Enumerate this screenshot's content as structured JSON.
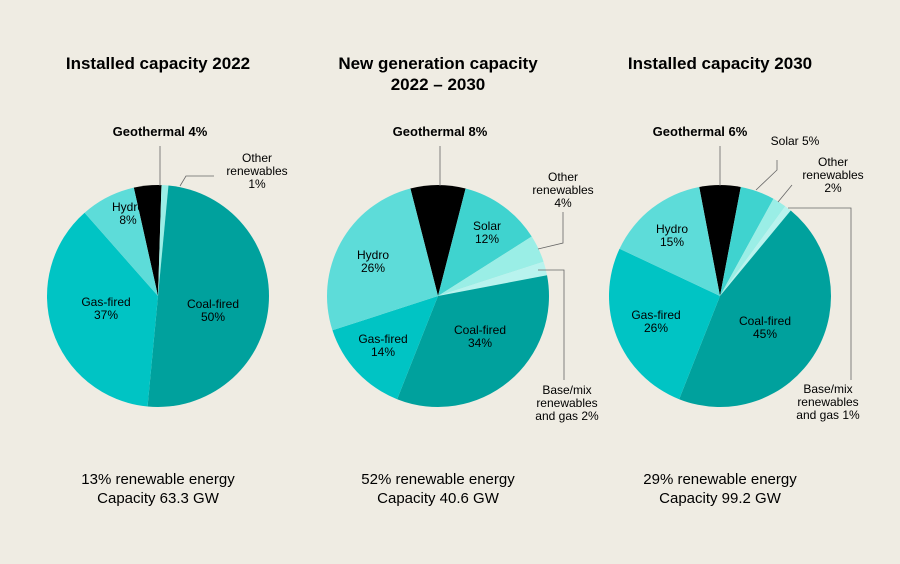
{
  "chart_data": [
    {
      "type": "pie",
      "title": "Installed capacity 2022",
      "footer": [
        "13% renewable energy",
        "Capacity 63.3 GW"
      ],
      "slices": [
        {
          "name": "Geothermal",
          "value": 4,
          "color": "#000000",
          "label": [
            "Geothermal 4%"
          ],
          "bold": true
        },
        {
          "name": "Other renewables",
          "value": 1,
          "color": "#9aeee6",
          "label": [
            "Other",
            "renewables",
            "1%"
          ]
        },
        {
          "name": "Coal-fired",
          "value": 50,
          "color": "#00a19d",
          "label": [
            "Coal-fired",
            "50%"
          ]
        },
        {
          "name": "Gas-fired",
          "value": 37,
          "color": "#00c4c4",
          "label": [
            "Gas-fired",
            "37%"
          ]
        },
        {
          "name": "Hydro",
          "value": 8,
          "color": "#5ddcd9",
          "label": [
            "Hydro",
            "8%"
          ]
        }
      ]
    },
    {
      "type": "pie",
      "title": "New generation capacity 2022 – 2030",
      "title_lines": [
        "New generation capacity",
        "2022 – 2030"
      ],
      "footer": [
        "52% renewable energy",
        "Capacity 40.6 GW"
      ],
      "slices": [
        {
          "name": "Geothermal",
          "value": 8,
          "color": "#000000",
          "label": [
            "Geothermal 8%"
          ],
          "bold": true
        },
        {
          "name": "Solar",
          "value": 12,
          "color": "#3fd3cf",
          "label": [
            "Solar",
            "12%"
          ]
        },
        {
          "name": "Other renewables",
          "value": 4,
          "color": "#9aeee6",
          "label": [
            "Other",
            "renewables",
            "4%"
          ]
        },
        {
          "name": "Base/mix renewables and gas",
          "value": 2,
          "color": "#b8f3ee",
          "label": [
            "Base/mix",
            "renewables",
            "and gas 2%"
          ]
        },
        {
          "name": "Coal-fired",
          "value": 34,
          "color": "#00a19d",
          "label": [
            "Coal-fired",
            "34%"
          ]
        },
        {
          "name": "Gas-fired",
          "value": 14,
          "color": "#00c4c4",
          "label": [
            "Gas-fired",
            "14%"
          ]
        },
        {
          "name": "Hydro",
          "value": 26,
          "color": "#5ddcd9",
          "label": [
            "Hydro",
            "26%"
          ]
        }
      ]
    },
    {
      "type": "pie",
      "title": "Installed capacity 2030",
      "footer": [
        "29% renewable energy",
        "Capacity 99.2 GW"
      ],
      "slices": [
        {
          "name": "Geothermal",
          "value": 6,
          "color": "#000000",
          "label": [
            "Geothermal 6%"
          ],
          "bold": true
        },
        {
          "name": "Solar",
          "value": 5,
          "color": "#3fd3cf",
          "label": [
            "Solar 5%"
          ]
        },
        {
          "name": "Other renewables",
          "value": 2,
          "color": "#9aeee6",
          "label": [
            "Other",
            "renewables",
            "2%"
          ]
        },
        {
          "name": "Base/mix renewables and gas",
          "value": 1,
          "color": "#b8f3ee",
          "label": [
            "Base/mix",
            "renewables",
            "and gas 1%"
          ]
        },
        {
          "name": "Coal-fired",
          "value": 45,
          "color": "#00a19d",
          "label": [
            "Coal-fired",
            "45%"
          ]
        },
        {
          "name": "Gas-fired",
          "value": 26,
          "color": "#00c4c4",
          "label": [
            "Gas-fired",
            "26%"
          ]
        },
        {
          "name": "Hydro",
          "value": 15,
          "color": "#5ddcd9",
          "label": [
            "Hydro",
            "15%"
          ]
        }
      ]
    }
  ]
}
